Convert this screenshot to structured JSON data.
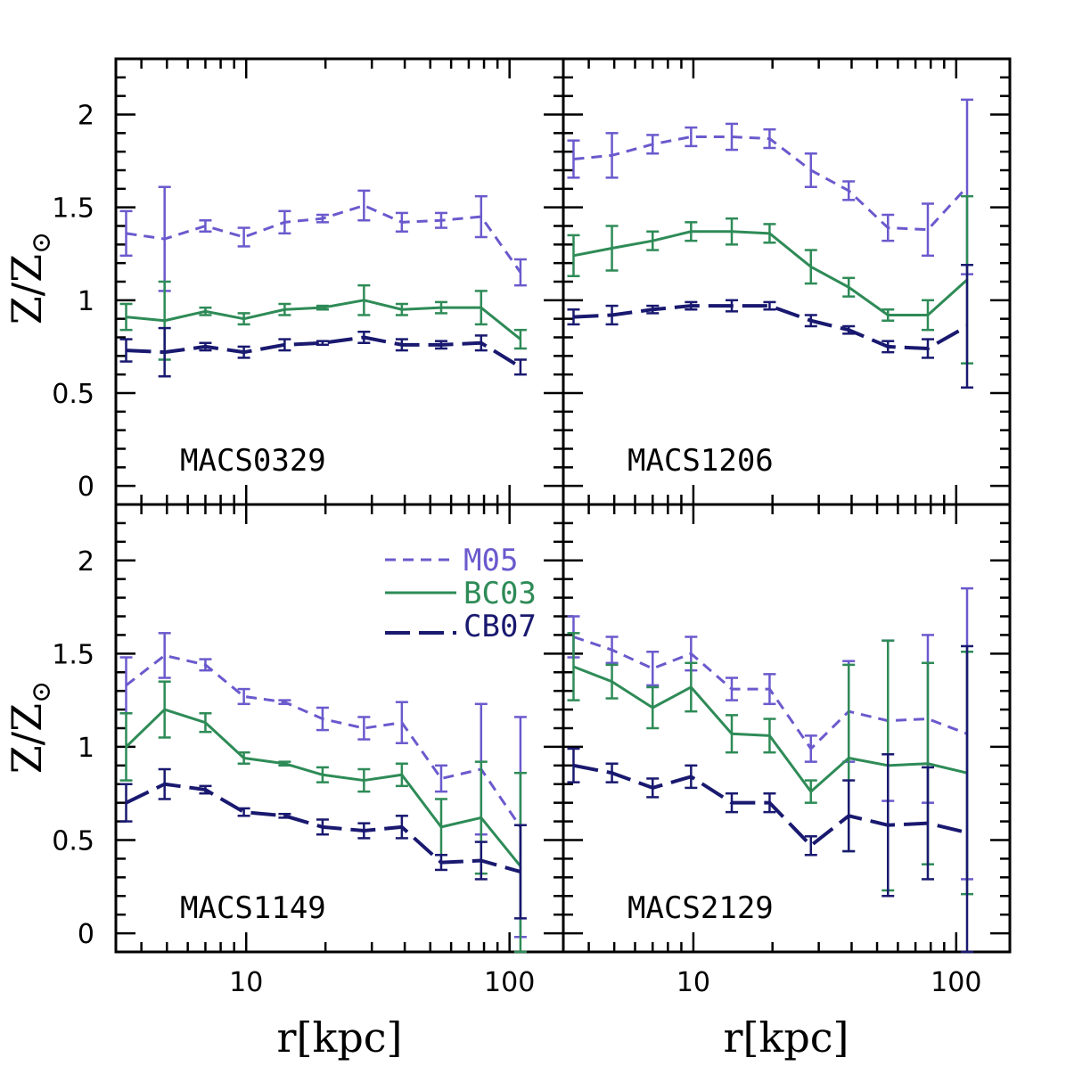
{
  "chart_data": {
    "type": "line",
    "x_scale": "log",
    "xlim": [
      3.2,
      160
    ],
    "ylim": [
      -0.1,
      2.3
    ],
    "xlabel": "r[kpc]",
    "ylabel_main": "Z/Z",
    "ylabel_sub": "⊙",
    "x_tick_labels": [
      "10",
      "100"
    ],
    "y_tick_labels": [
      "0",
      "0.5",
      "1",
      "1.5",
      "2"
    ],
    "legend": [
      {
        "name": "M05",
        "color": "#6a5acd",
        "style": "short-dash"
      },
      {
        "name": "BC03",
        "color": "#2e8b57",
        "style": "solid"
      },
      {
        "name": "CB07",
        "color": "#191970",
        "style": "long-dash"
      }
    ],
    "panels": [
      {
        "name": "MACS0329",
        "series": [
          {
            "name": "M05",
            "x": [
              3.5,
              4.9,
              7.0,
              9.8,
              14.0,
              19.5,
              28.0,
              39.0,
              55.0,
              78.0,
              110.0
            ],
            "y": [
              1.36,
              1.33,
              1.4,
              1.34,
              1.42,
              1.44,
              1.51,
              1.42,
              1.43,
              1.45,
              1.15
            ],
            "err": [
              0.12,
              0.28,
              0.03,
              0.05,
              0.06,
              0.02,
              0.08,
              0.05,
              0.04,
              0.11,
              0.07
            ]
          },
          {
            "name": "BC03",
            "x": [
              3.5,
              4.9,
              7.0,
              9.8,
              14.0,
              19.5,
              28.0,
              39.0,
              55.0,
              78.0,
              110.0
            ],
            "y": [
              0.91,
              0.89,
              0.94,
              0.9,
              0.95,
              0.96,
              1.0,
              0.95,
              0.96,
              0.96,
              0.79
            ],
            "err": [
              0.07,
              0.21,
              0.02,
              0.03,
              0.03,
              0.01,
              0.08,
              0.03,
              0.03,
              0.09,
              0.05
            ]
          },
          {
            "name": "CB07",
            "x": [
              3.5,
              4.9,
              7.0,
              9.8,
              14.0,
              19.5,
              28.0,
              39.0,
              55.0,
              78.0,
              110.0
            ],
            "y": [
              0.73,
              0.72,
              0.75,
              0.72,
              0.76,
              0.77,
              0.8,
              0.76,
              0.76,
              0.77,
              0.64
            ],
            "err": [
              0.06,
              0.13,
              0.02,
              0.03,
              0.03,
              0.01,
              0.03,
              0.03,
              0.02,
              0.04,
              0.04
            ]
          }
        ]
      },
      {
        "name": "MACS1206",
        "series": [
          {
            "name": "M05",
            "x": [
              3.5,
              4.9,
              7.0,
              9.8,
              14.0,
              19.5,
              28.0,
              39.0,
              55.0,
              78.0,
              110.0
            ],
            "y": [
              1.76,
              1.78,
              1.84,
              1.88,
              1.88,
              1.87,
              1.7,
              1.59,
              1.39,
              1.38,
              1.61
            ],
            "err": [
              0.1,
              0.12,
              0.05,
              0.05,
              0.07,
              0.05,
              0.09,
              0.05,
              0.07,
              0.14,
              0.47
            ]
          },
          {
            "name": "BC03",
            "x": [
              3.5,
              4.9,
              7.0,
              9.8,
              14.0,
              19.5,
              28.0,
              39.0,
              55.0,
              78.0,
              110.0
            ],
            "y": [
              1.24,
              1.28,
              1.32,
              1.37,
              1.37,
              1.36,
              1.18,
              1.07,
              0.92,
              0.92,
              1.11
            ],
            "err": [
              0.11,
              0.12,
              0.05,
              0.05,
              0.07,
              0.05,
              0.09,
              0.05,
              0.03,
              0.08,
              0.45
            ]
          },
          {
            "name": "CB07",
            "x": [
              3.5,
              4.9,
              7.0,
              9.8,
              14.0,
              19.5,
              28.0,
              39.0,
              55.0,
              78.0,
              110.0
            ],
            "y": [
              0.91,
              0.92,
              0.95,
              0.97,
              0.97,
              0.97,
              0.89,
              0.84,
              0.75,
              0.74,
              0.86
            ],
            "err": [
              0.04,
              0.05,
              0.02,
              0.02,
              0.03,
              0.02,
              0.03,
              0.02,
              0.03,
              0.05,
              0.33
            ]
          }
        ]
      },
      {
        "name": "MACS1149",
        "series": [
          {
            "name": "M05",
            "x": [
              3.5,
              4.9,
              7.0,
              9.8,
              14.0,
              19.5,
              28.0,
              39.0,
              55.0,
              78.0,
              110.0
            ],
            "y": [
              1.33,
              1.49,
              1.44,
              1.27,
              1.24,
              1.15,
              1.1,
              1.13,
              0.83,
              0.88,
              0.57
            ],
            "err": [
              0.15,
              0.12,
              0.03,
              0.04,
              0.01,
              0.06,
              0.06,
              0.11,
              0.07,
              0.35,
              0.59
            ]
          },
          {
            "name": "BC03",
            "x": [
              3.5,
              4.9,
              7.0,
              9.8,
              14.0,
              19.5,
              28.0,
              39.0,
              55.0,
              78.0,
              110.0
            ],
            "y": [
              1.0,
              1.2,
              1.13,
              0.94,
              0.91,
              0.85,
              0.82,
              0.85,
              0.57,
              0.62,
              0.36
            ],
            "err": [
              0.18,
              0.15,
              0.05,
              0.03,
              0.01,
              0.04,
              0.06,
              0.06,
              0.15,
              0.3,
              0.5
            ]
          },
          {
            "name": "CB07",
            "x": [
              3.5,
              4.9,
              7.0,
              9.8,
              14.0,
              19.5,
              28.0,
              39.0,
              55.0,
              78.0,
              110.0
            ],
            "y": [
              0.7,
              0.8,
              0.77,
              0.65,
              0.63,
              0.57,
              0.55,
              0.57,
              0.38,
              0.39,
              0.33
            ],
            "err": [
              0.1,
              0.08,
              0.02,
              0.02,
              0.01,
              0.04,
              0.04,
              0.06,
              0.04,
              0.1,
              0.25
            ]
          }
        ]
      },
      {
        "name": "MACS2129",
        "series": [
          {
            "name": "M05",
            "x": [
              3.5,
              4.9,
              7.0,
              9.8,
              14.0,
              19.5,
              28.0,
              39.0,
              55.0,
              78.0,
              110.0
            ],
            "y": [
              1.59,
              1.52,
              1.42,
              1.5,
              1.31,
              1.31,
              0.99,
              1.19,
              1.14,
              1.15,
              1.07
            ],
            "err": [
              0.11,
              0.07,
              0.09,
              0.09,
              0.06,
              0.08,
              0.07,
              0.27,
              0.43,
              0.45,
              0.78
            ]
          },
          {
            "name": "BC03",
            "x": [
              3.5,
              4.9,
              7.0,
              9.8,
              14.0,
              19.5,
              28.0,
              39.0,
              55.0,
              78.0,
              110.0
            ],
            "y": [
              1.43,
              1.35,
              1.21,
              1.32,
              1.07,
              1.06,
              0.76,
              0.94,
              0.9,
              0.91,
              0.86
            ],
            "err": [
              0.18,
              0.09,
              0.11,
              0.13,
              0.1,
              0.09,
              0.06,
              0.5,
              0.67,
              0.54,
              0.65
            ]
          },
          {
            "name": "CB07",
            "x": [
              3.5,
              4.9,
              7.0,
              9.8,
              14.0,
              19.5,
              28.0,
              39.0,
              55.0,
              78.0,
              110.0
            ],
            "y": [
              0.9,
              0.86,
              0.78,
              0.84,
              0.7,
              0.7,
              0.47,
              0.63,
              0.58,
              0.59,
              0.54
            ],
            "err": [
              0.09,
              0.05,
              0.05,
              0.06,
              0.05,
              0.05,
              0.05,
              0.19,
              0.38,
              0.3,
              1.0
            ]
          }
        ]
      }
    ]
  }
}
